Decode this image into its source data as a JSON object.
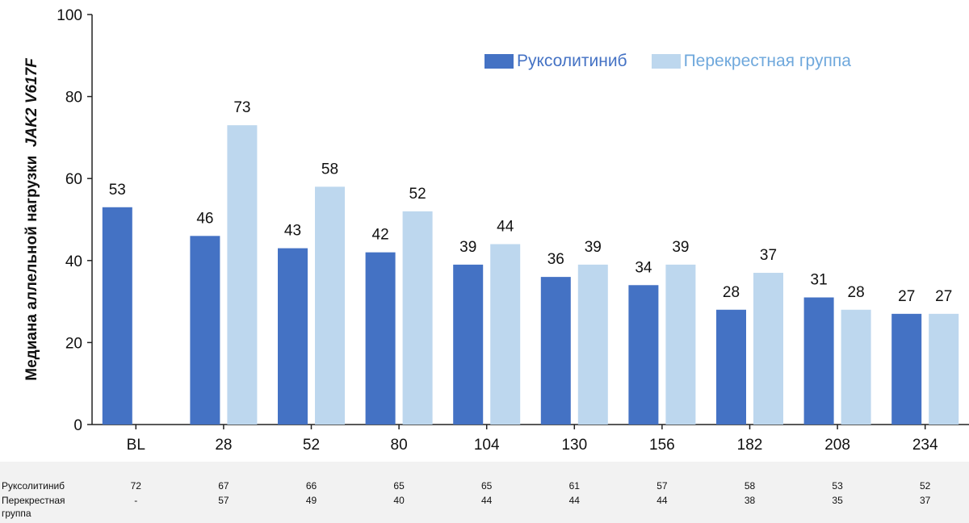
{
  "chart_data": {
    "type": "bar",
    "categories": [
      "BL",
      "28",
      "52",
      "80",
      "104",
      "130",
      "156",
      "182",
      "208",
      "234"
    ],
    "series": [
      {
        "name": "Руксолитиниб",
        "values": [
          53,
          46,
          43,
          42,
          39,
          36,
          34,
          28,
          31,
          27
        ],
        "color": "#4472c4"
      },
      {
        "name": "Перекрестная группа",
        "values": [
          null,
          73,
          58,
          52,
          44,
          39,
          39,
          37,
          28,
          27
        ],
        "color": "#bdd7ee"
      }
    ],
    "ylim": [
      0,
      100
    ],
    "yticks": [
      0,
      20,
      40,
      60,
      80,
      100
    ],
    "ylabel_main": "Медиана аллельной нагрузки",
    "ylabel_gene": "JAK2 V617F",
    "xlabel": "",
    "legend_position": "top-right",
    "data_labels": true
  },
  "legend": {
    "ruxolitinib": "Руксолитиниб",
    "crossover": "Перекрестная группа",
    "ruxolitinib_color": "#4472c4",
    "crossover_color": "#bdd7ee",
    "ruxolitinib_text_color": "#4472c4",
    "crossover_text_color": "#6fa8dc"
  },
  "table": {
    "ruxolitinib_label": "Руксолитиниб",
    "crossover_label_line1": "Перекрестная",
    "crossover_label_line2": "группа",
    "ruxolitinib_values": [
      "72",
      "67",
      "66",
      "65",
      "65",
      "61",
      "57",
      "58",
      "53",
      "52"
    ],
    "crossover_values": [
      "-",
      "57",
      "49",
      "40",
      "44",
      "44",
      "44",
      "38",
      "35",
      "37"
    ]
  }
}
